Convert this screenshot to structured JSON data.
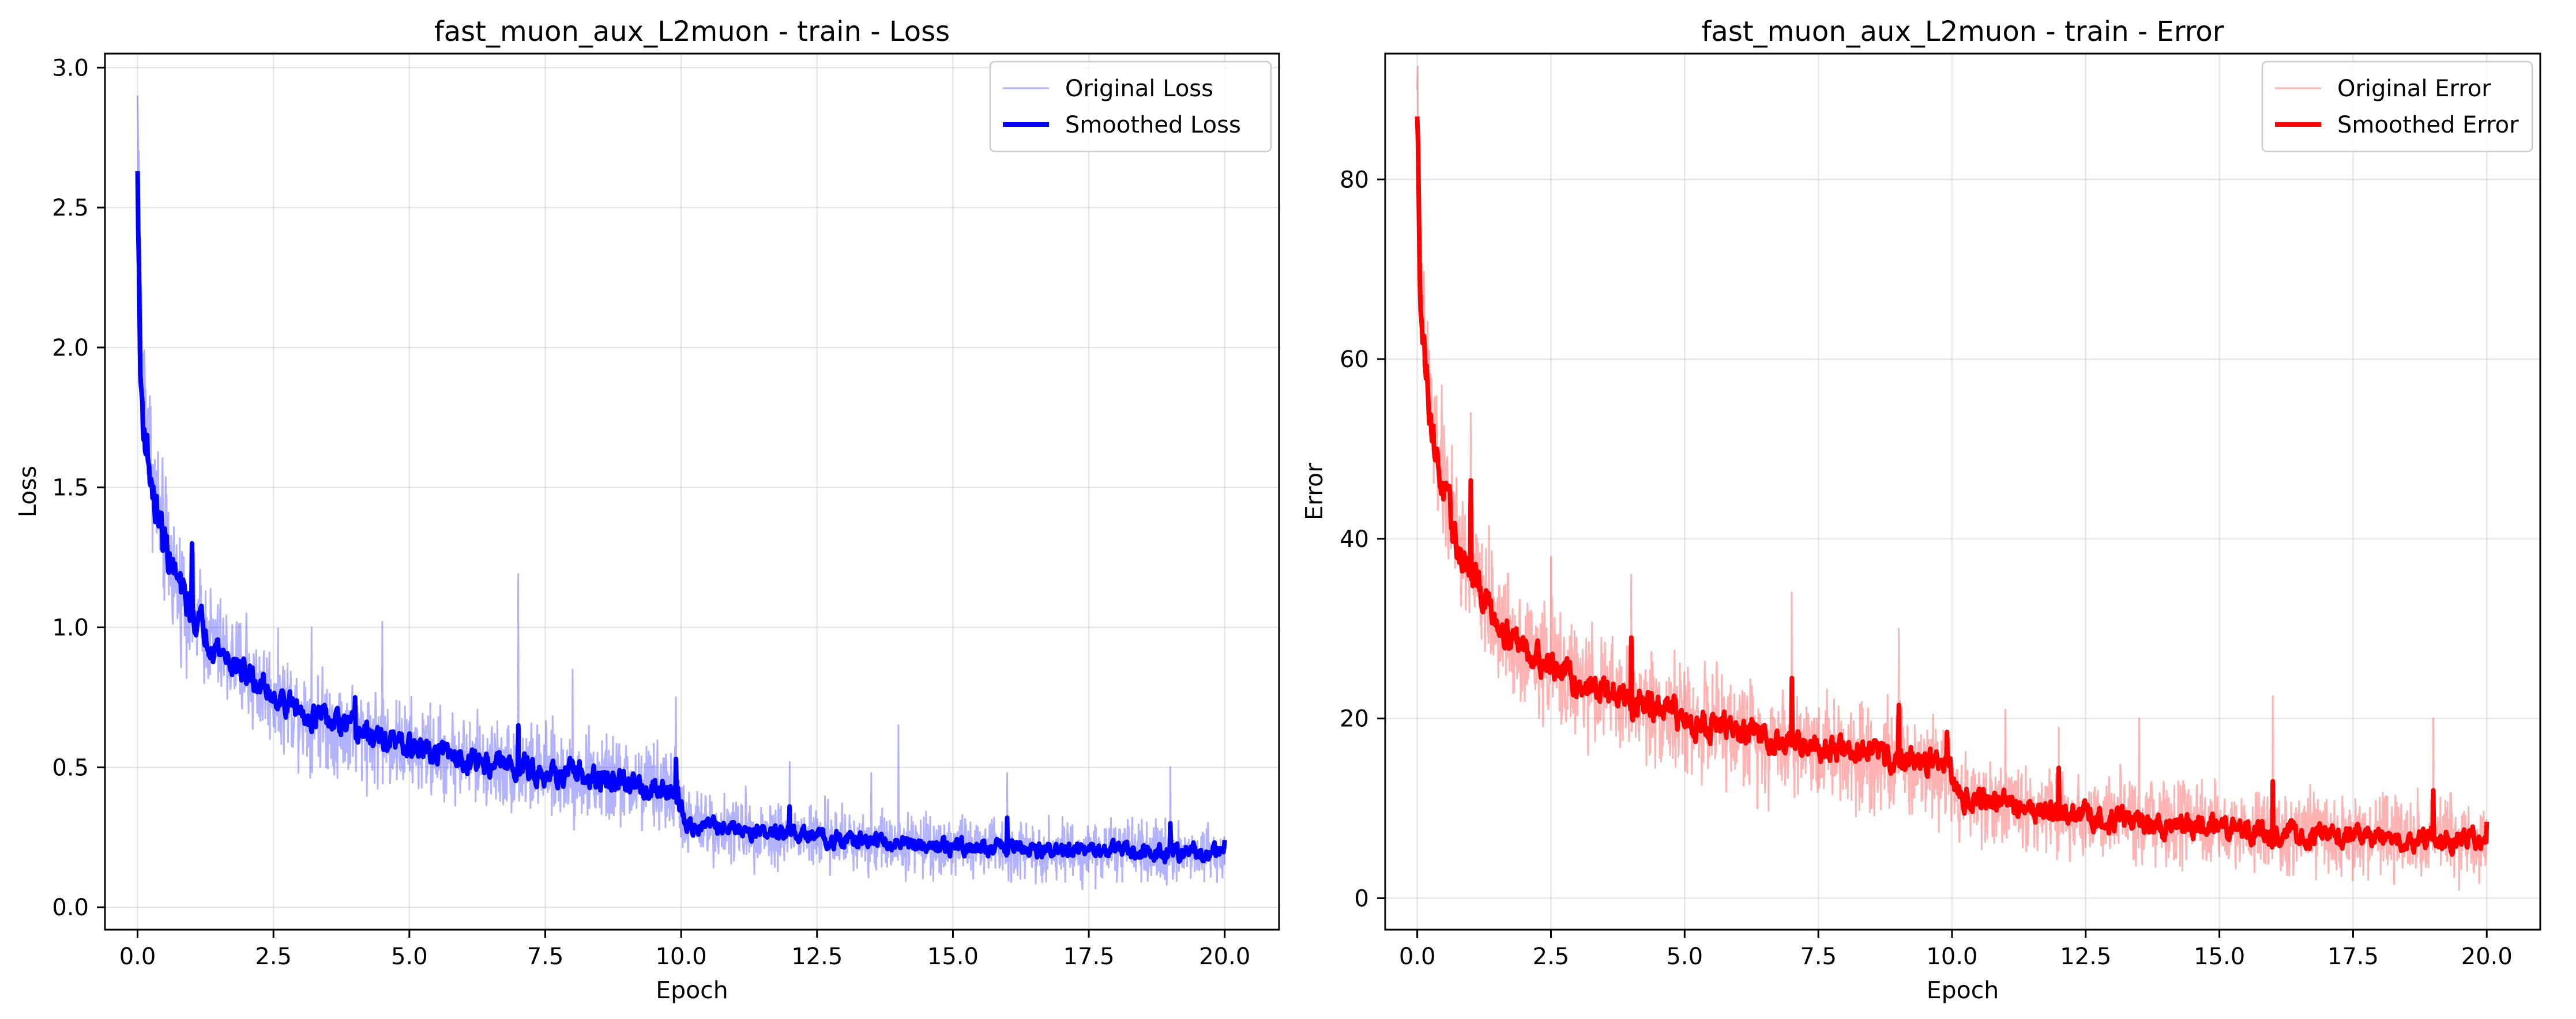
{
  "chart_data": [
    {
      "type": "line",
      "title": "fast_muon_aux_L2muon - train - Loss",
      "xlabel": "Epoch",
      "ylabel": "Loss",
      "xlim": [
        -0.6,
        21.0
      ],
      "ylim": [
        -0.08,
        3.05
      ],
      "xticks": [
        0.0,
        2.5,
        5.0,
        7.5,
        10.0,
        12.5,
        15.0,
        17.5,
        20.0
      ],
      "xtick_labels": [
        "0.0",
        "2.5",
        "5.0",
        "7.5",
        "10.0",
        "12.5",
        "15.0",
        "17.5",
        "20.0"
      ],
      "yticks": [
        0.0,
        0.5,
        1.0,
        1.5,
        2.0,
        2.5,
        3.0
      ],
      "ytick_labels": [
        "0.0",
        "0.5",
        "1.0",
        "1.5",
        "2.0",
        "2.5",
        "3.0"
      ],
      "grid": true,
      "legend_position": "top-right",
      "series": [
        {
          "name": "Original Loss",
          "color": "#0000ff",
          "opacity": 0.3,
          "style": "thin",
          "x": [
            0.0,
            0.05,
            0.1,
            0.2,
            0.3,
            0.5,
            0.75,
            1.0,
            1.5,
            2.0,
            2.5,
            3.0,
            4.0,
            5.0,
            6.0,
            7.0,
            8.0,
            9.0,
            9.9,
            10.1,
            11.0,
            12.0,
            13.0,
            14.0,
            15.0,
            16.0,
            17.0,
            18.0,
            19.0,
            20.0
          ],
          "values": [
            2.9,
            2.2,
            1.9,
            1.7,
            1.5,
            1.3,
            1.15,
            1.05,
            0.92,
            0.83,
            0.76,
            0.7,
            0.63,
            0.57,
            0.53,
            0.5,
            0.47,
            0.44,
            0.42,
            0.3,
            0.28,
            0.26,
            0.24,
            0.23,
            0.22,
            0.21,
            0.2,
            0.2,
            0.19,
            0.2
          ],
          "noise_amplitude": [
            0.25,
            0.25,
            0.2,
            0.2,
            0.18,
            0.18,
            0.16,
            0.15,
            0.14,
            0.14,
            0.13,
            0.13,
            0.13,
            0.12,
            0.12,
            0.12,
            0.12,
            0.12,
            0.12,
            0.09,
            0.09,
            0.09,
            0.09,
            0.08,
            0.08,
            0.08,
            0.08,
            0.08,
            0.08,
            0.08
          ],
          "spikes": [
            [
              7.0,
              1.19
            ],
            [
              4.5,
              1.02
            ],
            [
              14.0,
              0.65
            ],
            [
              2.0,
              1.05
            ],
            [
              1.0,
              1.3
            ],
            [
              16.0,
              0.48
            ],
            [
              12.0,
              0.52
            ],
            [
              19.0,
              0.5
            ],
            [
              8.0,
              0.85
            ],
            [
              13.5,
              0.48
            ],
            [
              9.9,
              0.75
            ],
            [
              3.2,
              1.0
            ]
          ]
        },
        {
          "name": "Smoothed Loss",
          "color": "#0000ff",
          "opacity": 1,
          "style": "thick",
          "x": [
            0.0,
            0.05,
            0.1,
            0.2,
            0.3,
            0.5,
            0.75,
            1.0,
            1.5,
            2.0,
            2.5,
            3.0,
            4.0,
            5.0,
            6.0,
            7.0,
            8.0,
            9.0,
            9.9,
            10.1,
            11.0,
            12.0,
            13.0,
            14.0,
            15.0,
            16.0,
            17.0,
            18.0,
            19.0,
            20.0
          ],
          "values": [
            2.63,
            1.9,
            1.75,
            1.6,
            1.45,
            1.3,
            1.15,
            1.05,
            0.92,
            0.83,
            0.76,
            0.7,
            0.63,
            0.57,
            0.53,
            0.5,
            0.47,
            0.44,
            0.42,
            0.3,
            0.28,
            0.26,
            0.24,
            0.23,
            0.22,
            0.21,
            0.2,
            0.2,
            0.19,
            0.2
          ],
          "noise_amplitude": [
            0.03,
            0.06,
            0.06,
            0.05,
            0.05,
            0.05,
            0.045,
            0.04,
            0.035,
            0.035,
            0.03,
            0.03,
            0.03,
            0.03,
            0.03,
            0.03,
            0.03,
            0.03,
            0.03,
            0.02,
            0.02,
            0.02,
            0.02,
            0.02,
            0.02,
            0.02,
            0.02,
            0.02,
            0.02,
            0.02
          ],
          "spikes": [
            [
              1.0,
              1.3
            ],
            [
              4.0,
              0.75
            ],
            [
              7.0,
              0.65
            ],
            [
              9.9,
              0.53
            ],
            [
              12.0,
              0.36
            ],
            [
              16.0,
              0.32
            ],
            [
              19.0,
              0.3
            ],
            [
              20.0,
              0.24
            ]
          ]
        }
      ]
    },
    {
      "type": "line",
      "title": "fast_muon_aux_L2muon - train - Error",
      "xlabel": "Epoch",
      "ylabel": "Error",
      "xlim": [
        -0.6,
        21.0
      ],
      "ylim": [
        -3.5,
        94.0
      ],
      "xticks": [
        0.0,
        2.5,
        5.0,
        7.5,
        10.0,
        12.5,
        15.0,
        17.5,
        20.0
      ],
      "xtick_labels": [
        "0.0",
        "2.5",
        "5.0",
        "7.5",
        "10.0",
        "12.5",
        "15.0",
        "17.5",
        "20.0"
      ],
      "yticks": [
        0,
        20,
        40,
        60,
        80
      ],
      "ytick_labels": [
        "0",
        "20",
        "40",
        "60",
        "80"
      ],
      "grid": true,
      "legend_position": "top-right",
      "series": [
        {
          "name": "Original Error",
          "color": "#ff0000",
          "opacity": 0.3,
          "style": "thin",
          "x": [
            0.0,
            0.05,
            0.1,
            0.2,
            0.3,
            0.5,
            0.75,
            1.0,
            1.5,
            2.0,
            2.5,
            3.0,
            4.0,
            5.0,
            6.0,
            7.0,
            8.0,
            9.0,
            9.9,
            10.1,
            11.0,
            12.0,
            13.0,
            14.0,
            15.0,
            16.0,
            17.0,
            18.0,
            19.0,
            20.0
          ],
          "values": [
            90,
            72,
            64,
            58,
            52,
            46,
            40,
            36,
            31,
            28,
            26,
            24,
            22,
            20,
            18.5,
            17.5,
            16.5,
            15.5,
            15,
            11.5,
            10.5,
            9.5,
            8.8,
            8.2,
            7.8,
            7.3,
            7,
            6.8,
            6.5,
            6.5
          ],
          "noise_amplitude": [
            6,
            6,
            6,
            6,
            6,
            6,
            5.5,
            5,
            5,
            5,
            5,
            4.5,
            4.5,
            4.5,
            4.5,
            4.5,
            4.5,
            4.5,
            4.5,
            3.5,
            3.5,
            3.5,
            3.5,
            3.5,
            3.5,
            3.5,
            3.5,
            3.5,
            3.5,
            3.5
          ],
          "spikes": [
            [
              1.0,
              54
            ],
            [
              7.0,
              34
            ],
            [
              9.0,
              30
            ],
            [
              16.0,
              22.5
            ],
            [
              13.5,
              20
            ],
            [
              4.0,
              36
            ],
            [
              12.0,
              19
            ],
            [
              19.0,
              20
            ],
            [
              2.5,
              38
            ],
            [
              11.0,
              21
            ]
          ]
        },
        {
          "name": "Smoothed Error",
          "color": "#ff0000",
          "opacity": 1,
          "style": "thick",
          "x": [
            0.0,
            0.05,
            0.1,
            0.2,
            0.3,
            0.5,
            0.75,
            1.0,
            1.5,
            2.0,
            2.5,
            3.0,
            4.0,
            5.0,
            6.0,
            7.0,
            8.0,
            9.0,
            9.9,
            10.1,
            11.0,
            12.0,
            13.0,
            14.0,
            15.0,
            16.0,
            17.0,
            18.0,
            19.0,
            20.0
          ],
          "values": [
            87,
            70,
            63,
            57,
            51,
            45,
            39,
            36,
            31,
            28,
            26,
            24,
            22,
            20,
            18.5,
            17.5,
            16.5,
            15.5,
            15,
            11.5,
            10.5,
            9.5,
            8.8,
            8.2,
            7.8,
            7.3,
            7,
            6.8,
            6.5,
            6.5
          ],
          "noise_amplitude": [
            1.5,
            1.5,
            1.5,
            1.5,
            1.5,
            1.5,
            1.3,
            1.2,
            1.2,
            1.2,
            1.1,
            1.1,
            1.1,
            1.1,
            1.1,
            1.0,
            1.0,
            1.0,
            1.0,
            0.9,
            0.9,
            0.9,
            0.9,
            0.9,
            0.8,
            0.8,
            0.8,
            0.8,
            0.8,
            0.8
          ],
          "spikes": [
            [
              1.0,
              46.5
            ],
            [
              4.0,
              29
            ],
            [
              7.0,
              24.5
            ],
            [
              9.0,
              21.5
            ],
            [
              9.9,
              18.5
            ],
            [
              12.0,
              14.5
            ],
            [
              16.0,
              13
            ],
            [
              19.0,
              12
            ],
            [
              20.0,
              8.5
            ]
          ]
        }
      ]
    }
  ]
}
